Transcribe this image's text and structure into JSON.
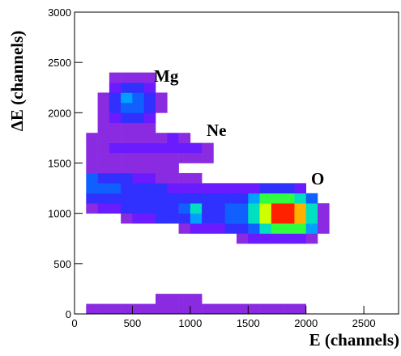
{
  "chart_data": {
    "type": "heatmap2d",
    "xlabel": "E (channels)",
    "ylabel": "ΔE (channels)",
    "xlim": [
      0,
      2800
    ],
    "ylim": [
      0,
      3000
    ],
    "xticks": [
      0,
      500,
      1000,
      1500,
      2000,
      2500
    ],
    "yticks": [
      0,
      500,
      1000,
      1500,
      2000,
      2500,
      3000
    ],
    "xbins": [
      0,
      100,
      200,
      300,
      400,
      500,
      600,
      700,
      800,
      900,
      1000,
      1100,
      1200,
      1300,
      1400,
      1500,
      1600,
      1700,
      1800,
      1900,
      2000,
      2100,
      2200
    ],
    "ybins": [
      0,
      100,
      200,
      300,
      400,
      500,
      600,
      700,
      800,
      900,
      1000,
      1100,
      1200,
      1300,
      1400,
      1500,
      1600,
      1700,
      1800,
      1900,
      2000,
      2100,
      2200,
      2300,
      2400
    ],
    "palette": [
      "#8a2be2",
      "#6a1bff",
      "#3030ff",
      "#1060ff",
      "#00a0ff",
      "#00e0c0",
      "#30ff40",
      "#d0ff00",
      "#ffb000",
      "#ff2000"
    ],
    "z": [
      [
        0,
        1,
        1,
        1,
        1,
        1,
        1,
        1,
        1,
        1,
        1,
        1,
        1,
        1,
        1,
        1,
        1,
        1,
        1,
        1,
        0,
        0
      ],
      [
        0,
        0,
        0,
        0,
        0,
        0,
        0,
        1,
        1,
        1,
        1,
        0,
        0,
        0,
        0,
        0,
        0,
        0,
        0,
        0,
        0,
        0
      ],
      [
        0,
        0,
        0,
        0,
        0,
        0,
        0,
        0,
        0,
        0,
        0,
        0,
        0,
        0,
        0,
        0,
        0,
        0,
        0,
        0,
        0,
        0
      ],
      [
        0,
        0,
        0,
        0,
        0,
        0,
        0,
        0,
        0,
        0,
        0,
        0,
        0,
        0,
        0,
        0,
        0,
        0,
        0,
        0,
        0,
        0
      ],
      [
        0,
        0,
        0,
        0,
        0,
        0,
        0,
        0,
        0,
        0,
        0,
        0,
        0,
        0,
        0,
        0,
        0,
        0,
        0,
        0,
        0,
        0
      ],
      [
        0,
        0,
        0,
        0,
        0,
        0,
        0,
        0,
        0,
        0,
        0,
        0,
        0,
        0,
        0,
        0,
        0,
        0,
        0,
        0,
        0,
        0
      ],
      [
        0,
        0,
        0,
        0,
        0,
        0,
        0,
        0,
        0,
        0,
        0,
        0,
        0,
        0,
        0,
        0,
        0,
        0,
        0,
        0,
        0,
        0
      ],
      [
        0,
        0,
        0,
        0,
        0,
        0,
        0,
        0,
        0,
        0,
        0,
        0,
        0,
        0,
        1,
        2,
        2,
        2,
        2,
        2,
        1,
        0
      ],
      [
        0,
        0,
        0,
        0,
        0,
        0,
        0,
        0,
        0,
        1,
        2,
        2,
        2,
        3,
        3,
        4,
        6,
        7,
        7,
        7,
        5,
        1
      ],
      [
        0,
        0,
        0,
        0,
        1,
        2,
        2,
        3,
        3,
        3,
        5,
        3,
        3,
        4,
        4,
        6,
        8,
        10,
        10,
        9,
        6,
        1
      ],
      [
        0,
        1,
        2,
        2,
        3,
        3,
        3,
        3,
        3,
        4,
        6,
        3,
        3,
        4,
        4,
        6,
        8,
        10,
        10,
        9,
        6,
        1
      ],
      [
        0,
        3,
        3,
        3,
        3,
        3,
        3,
        3,
        3,
        3,
        3,
        3,
        3,
        3,
        3,
        5,
        7,
        7,
        7,
        6,
        4,
        0
      ],
      [
        0,
        4,
        4,
        4,
        3,
        3,
        3,
        3,
        2,
        2,
        2,
        2,
        2,
        2,
        2,
        2,
        3,
        3,
        3,
        2,
        0,
        0
      ],
      [
        0,
        4,
        3,
        3,
        3,
        2,
        2,
        1,
        1,
        1,
        1,
        0,
        0,
        0,
        0,
        0,
        0,
        0,
        0,
        0,
        0,
        0
      ],
      [
        0,
        1,
        1,
        1,
        1,
        1,
        1,
        1,
        1,
        0,
        0,
        0,
        0,
        0,
        0,
        0,
        0,
        0,
        0,
        0,
        0,
        0
      ],
      [
        0,
        1,
        1,
        1,
        1,
        1,
        1,
        1,
        1,
        1,
        1,
        1,
        0,
        0,
        0,
        0,
        0,
        0,
        0,
        0,
        0,
        0
      ],
      [
        0,
        1,
        1,
        2,
        2,
        2,
        2,
        2,
        2,
        2,
        2,
        1,
        0,
        0,
        0,
        0,
        0,
        0,
        0,
        0,
        0,
        0
      ],
      [
        0,
        1,
        1,
        1,
        1,
        1,
        1,
        1,
        2,
        1,
        0,
        0,
        0,
        0,
        0,
        0,
        0,
        0,
        0,
        0,
        0,
        0
      ],
      [
        0,
        0,
        1,
        1,
        1,
        1,
        1,
        0,
        0,
        0,
        0,
        0,
        0,
        0,
        0,
        0,
        0,
        0,
        0,
        0,
        0,
        0
      ],
      [
        0,
        0,
        1,
        2,
        3,
        3,
        2,
        0,
        0,
        0,
        0,
        0,
        0,
        0,
        0,
        0,
        0,
        0,
        0,
        0,
        0,
        0
      ],
      [
        0,
        0,
        1,
        3,
        4,
        4,
        3,
        1,
        0,
        0,
        0,
        0,
        0,
        0,
        0,
        0,
        0,
        0,
        0,
        0,
        0,
        0
      ],
      [
        0,
        0,
        1,
        3,
        5,
        4,
        3,
        1,
        0,
        0,
        0,
        0,
        0,
        0,
        0,
        0,
        0,
        0,
        0,
        0,
        0,
        0
      ],
      [
        0,
        0,
        0,
        2,
        3,
        3,
        2,
        0,
        0,
        0,
        0,
        0,
        0,
        0,
        0,
        0,
        0,
        0,
        0,
        0,
        0,
        0
      ],
      [
        0,
        0,
        0,
        1,
        1,
        1,
        1,
        0,
        0,
        0,
        0,
        0,
        0,
        0,
        0,
        0,
        0,
        0,
        0,
        0,
        0,
        0
      ]
    ],
    "annotations": [
      "Mg",
      "Ne",
      "O"
    ]
  }
}
